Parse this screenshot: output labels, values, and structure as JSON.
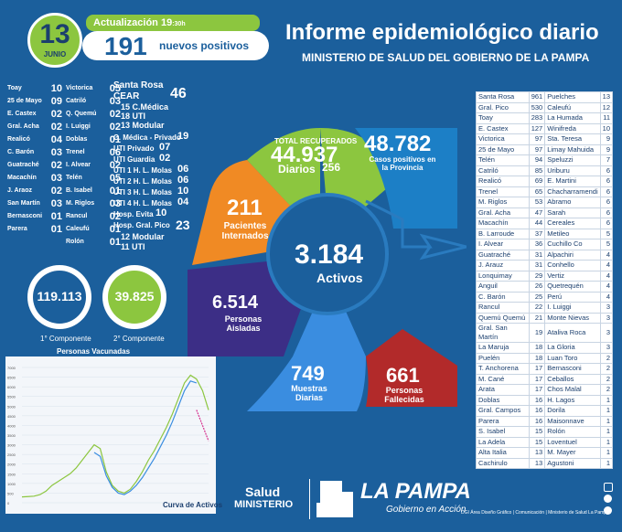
{
  "header": {
    "day": "13",
    "month": "JUNIO",
    "update_label": "Actualización 19",
    "update_time": ":30h",
    "new_positives": "191",
    "new_positives_label": "nuevos positivos",
    "title": "Informe epidemiológico diario",
    "subtitle": "MINISTERIO DE SALUD DEL GOBIERNO DE LA PAMPA"
  },
  "left_departments": [
    {
      "name": "Toay",
      "value": "10"
    },
    {
      "name": "25 de Mayo",
      "value": "09"
    },
    {
      "name": "E. Castex",
      "value": "02"
    },
    {
      "name": "Gral. Acha",
      "value": "02"
    },
    {
      "name": "Realicó",
      "value": "04"
    },
    {
      "name": "C. Barón",
      "value": "03"
    },
    {
      "name": "Guatraché",
      "value": "02"
    },
    {
      "name": "Macachín",
      "value": "03"
    },
    {
      "name": "J. Araoz",
      "value": "02"
    },
    {
      "name": "San Martín",
      "value": "03"
    },
    {
      "name": "Bernasconi",
      "value": "01"
    },
    {
      "name": "Parera",
      "value": "01"
    }
  ],
  "mid_departments": [
    {
      "name": "Victorica",
      "value": "05"
    },
    {
      "name": "Catriló",
      "value": "03"
    },
    {
      "name": "Q. Quemú",
      "value": "02"
    },
    {
      "name": "I. Luiggi",
      "value": "02"
    },
    {
      "name": "Doblas",
      "value": "01"
    },
    {
      "name": "Trenel",
      "value": "06"
    },
    {
      "name": "I. Alvear",
      "value": "02"
    },
    {
      "name": "Telén",
      "value": "05"
    },
    {
      "name": "B. Isabel",
      "value": "01"
    },
    {
      "name": "M. Riglos",
      "value": "03"
    },
    {
      "name": "Rancul",
      "value": "02"
    },
    {
      "name": "Caleufú",
      "value": "01"
    },
    {
      "name": "Rolón",
      "value": "01"
    }
  ],
  "hospital": {
    "santa_rosa_label": "Santa Rosa",
    "cear_label": "CEAR",
    "cear_value": "46",
    "cmedica": "15 C.Médica",
    "uti": "18 UTI",
    "modular": "13 Modular",
    "cmedica_privado_label": "C. Médica - Privado",
    "cmedica_privado_value": "19",
    "uti_privado_label": "UTI Privado",
    "uti_privado_value": "07",
    "uti_guardia_label": "UTI Guardia",
    "uti_guardia_value": "02",
    "uti1_label": "UTI 1 H. L. Molas",
    "uti1_value": "06",
    "uti2_label": "UTI 2 H. L. Molas",
    "uti2_value": "06",
    "uti3_label": "UTI 3 H. L. Molas",
    "uti3_value": "10",
    "uti4_label": "UTI 4 H. L. Molas",
    "uti4_value": "04",
    "evita_label": "Hosp. Evita",
    "evita_value": "10",
    "gral_pico_label": "Hosp. Gral. Pico",
    "gral_pico_value": "23",
    "pico_modular": "12 Modular",
    "pico_uti": "11 UTI"
  },
  "components": {
    "first_value": "119.113",
    "first_label": "1° Componente",
    "second_value": "39.825",
    "second_label": "2° Componente"
  },
  "chart_data": {
    "type": "line",
    "title": "Personas Vacunadas",
    "xlabel": "Curva de Activos",
    "ylabel": "",
    "y_ticks": [
      "7000",
      "6500",
      "6000",
      "5500",
      "5000",
      "4500",
      "4000",
      "3500",
      "3000",
      "2500",
      "2000",
      "1500",
      "1000",
      "500",
      "0"
    ],
    "ylim": [
      0,
      7000
    ],
    "series": [
      {
        "name": "",
        "color": "#8cc63f",
        "values": [
          300,
          320,
          340,
          420,
          600,
          900,
          1100,
          1300,
          1500,
          1800,
          2200,
          2600,
          3000,
          2800,
          1600,
          900,
          600,
          500,
          700,
          1100,
          1600,
          2200,
          2700,
          3300,
          3900,
          4600,
          5400,
          6200,
          6600,
          6400,
          5800,
          4800
        ]
      },
      {
        "name": "",
        "color": "#3a8de0",
        "values": [
          0,
          0,
          0,
          0,
          0,
          0,
          0,
          0,
          0,
          0,
          0,
          0,
          2600,
          2400,
          1400,
          800,
          500,
          420,
          600,
          900,
          1300,
          1800,
          2300,
          2900,
          3500,
          4200,
          5000,
          5800,
          6300,
          6200,
          0,
          0
        ]
      },
      {
        "name": "",
        "color": "#d6308e",
        "values": [
          0,
          0,
          0,
          0,
          0,
          0,
          0,
          0,
          0,
          0,
          0,
          0,
          0,
          0,
          0,
          0,
          0,
          0,
          0,
          0,
          0,
          0,
          0,
          0,
          0,
          0,
          0,
          0,
          0,
          4800,
          4000,
          3200
        ]
      }
    ]
  },
  "wheel": {
    "recovered_label": "TOTAL RECUPERADOS",
    "recovered_value": "44.937",
    "recovered_daily_label": "Diarios",
    "recovered_daily_value": "256",
    "cases_value": "48.782",
    "cases_label": "Casos positivos en la Provincia",
    "hospitalized_value": "211",
    "hospitalized_label": "Pacientes Internados",
    "active_value": "3.184",
    "active_label": "Activos",
    "isolated_value": "6.514",
    "isolated_label": "Personas Aisladas",
    "samples_value": "749",
    "samples_label": "Muestras Diarias",
    "deceased_value": "661",
    "deceased_label": "Personas Fallecidas"
  },
  "table": [
    [
      "Santa Rosa",
      "961",
      "Puelches",
      "13"
    ],
    [
      "Gral. Pico",
      "530",
      "Caleufú",
      "12"
    ],
    [
      "Toay",
      "283",
      "La Humada",
      "11"
    ],
    [
      "E. Castex",
      "127",
      "Winifreda",
      "10"
    ],
    [
      "Victorica",
      "97",
      "Sta. Teresa",
      "9"
    ],
    [
      "25 de Mayo",
      "97",
      "Limay Mahuida",
      "9"
    ],
    [
      "Telén",
      "94",
      "Speluzzi",
      "7"
    ],
    [
      "Catriló",
      "85",
      "Uriburu",
      "6"
    ],
    [
      "Realicó",
      "69",
      "E. Martini",
      "6"
    ],
    [
      "Trenel",
      "65",
      "Chacharramendi",
      "6"
    ],
    [
      "M. Riglos",
      "53",
      "Abramo",
      "6"
    ],
    [
      "Gral. Acha",
      "47",
      "Sarah",
      "6"
    ],
    [
      "Macachín",
      "44",
      "Cereales",
      "6"
    ],
    [
      "B. Larroude",
      "37",
      "Metileo",
      "5"
    ],
    [
      "I. Alvear",
      "36",
      "Cuchillo Co",
      "5"
    ],
    [
      "Guatraché",
      "31",
      "Alpachiri",
      "4"
    ],
    [
      "J. Arauz",
      "31",
      "Conhello",
      "4"
    ],
    [
      "Lonquimay",
      "29",
      "Vertiz",
      "4"
    ],
    [
      "Anguil",
      "26",
      "Quetrequén",
      "4"
    ],
    [
      "C. Barón",
      "25",
      "Perú",
      "4"
    ],
    [
      "Rancul",
      "22",
      "I. Luiggi",
      "3"
    ],
    [
      "Quemú Quemú",
      "21",
      "Monte Nievas",
      "3"
    ],
    [
      "Gral. San Martín",
      "19",
      "Ataliva Roca",
      "3"
    ],
    [
      "La Maruja",
      "18",
      "La Gloria",
      "3"
    ],
    [
      "Puelén",
      "18",
      "Luan Toro",
      "2"
    ],
    [
      "T. Anchorena",
      "17",
      "Bernasconi",
      "2"
    ],
    [
      "M. Cané",
      "17",
      "Ceballos",
      "2"
    ],
    [
      "Arata",
      "17",
      "Chos Malal",
      "2"
    ],
    [
      "Doblas",
      "16",
      "H. Lagos",
      "1"
    ],
    [
      "Gral. Campos",
      "16",
      "Dorila",
      "1"
    ],
    [
      "Parera",
      "16",
      "Maisonnave",
      "1"
    ],
    [
      "S. Isabel",
      "15",
      "Rolón",
      "1"
    ],
    [
      "La Adela",
      "15",
      "Loventuel",
      "1"
    ],
    [
      "Alta Italia",
      "13",
      "M. Mayer",
      "1"
    ],
    [
      "Cachirulo",
      "13",
      "Agustoni",
      "1"
    ]
  ],
  "footer": {
    "salud": "Salud",
    "ministerio": "MINISTERIO",
    "brand": "LA PAMPA",
    "tagline": "Gobierno en Acción",
    "credits": "DGI Área Diseño Gráfico | Comunicación | Ministerio de Salud La Pampa"
  },
  "colors": {
    "background": "#1b5f9c",
    "green": "#8cc63f",
    "orange": "#f08a24",
    "purple": "#3c2e86",
    "light_blue": "#3a8de0",
    "red": "#b22a2a",
    "navy": "#1b3f6e"
  }
}
